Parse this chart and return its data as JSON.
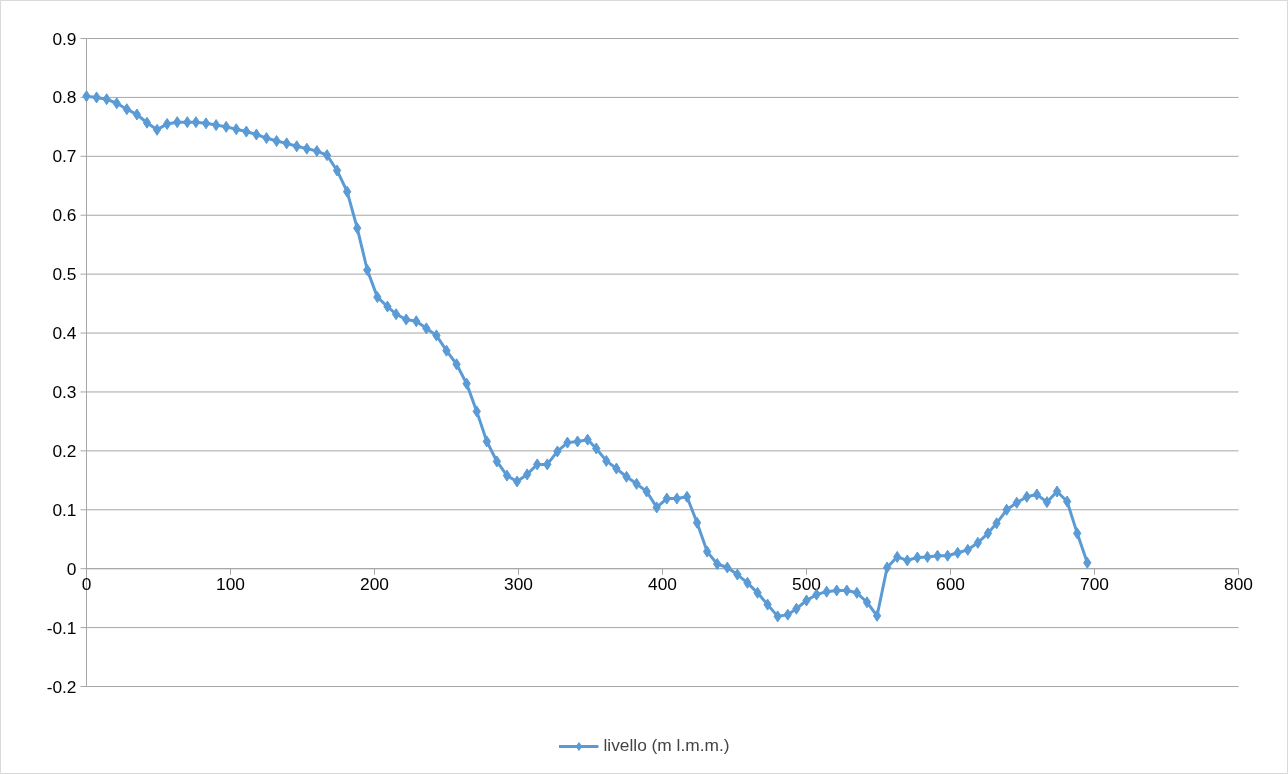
{
  "chart_data": {
    "type": "line",
    "x": [
      0,
      7,
      14,
      21,
      28,
      35,
      42,
      49,
      56,
      63,
      70,
      76,
      83,
      90,
      97,
      104,
      111,
      118,
      125,
      132,
      139,
      146,
      153,
      160,
      167,
      174,
      181,
      188,
      195,
      202,
      209,
      215,
      222,
      229,
      236,
      243,
      250,
      257,
      264,
      271,
      278,
      285,
      292,
      299,
      306,
      313,
      320,
      327,
      334,
      341,
      348,
      354,
      361,
      368,
      375,
      382,
      389,
      396,
      403,
      410,
      417,
      424,
      431,
      438,
      445,
      452,
      459,
      466,
      473,
      480,
      487,
      493,
      500,
      507,
      514,
      521,
      528,
      535,
      542,
      549,
      556,
      563,
      570,
      577,
      584,
      591,
      598,
      605,
      612,
      619,
      626,
      632,
      639,
      646,
      653,
      660,
      667,
      674,
      681,
      688,
      695
    ],
    "series": [
      {
        "name": "livello (m l.m.m.)",
        "color": "#5b9bd5",
        "values": [
          0.802,
          0.8,
          0.797,
          0.79,
          0.78,
          0.771,
          0.757,
          0.745,
          0.755,
          0.758,
          0.758,
          0.758,
          0.756,
          0.753,
          0.75,
          0.746,
          0.742,
          0.737,
          0.731,
          0.726,
          0.722,
          0.717,
          0.713,
          0.709,
          0.702,
          0.676,
          0.64,
          0.578,
          0.507,
          0.461,
          0.445,
          0.432,
          0.423,
          0.42,
          0.408,
          0.396,
          0.37,
          0.347,
          0.314,
          0.267,
          0.216,
          0.182,
          0.158,
          0.148,
          0.16,
          0.177,
          0.177,
          0.199,
          0.214,
          0.216,
          0.219,
          0.204,
          0.183,
          0.17,
          0.156,
          0.144,
          0.131,
          0.104,
          0.119,
          0.119,
          0.122,
          0.078,
          0.029,
          0.008,
          0.002,
          -0.01,
          -0.024,
          -0.041,
          -0.061,
          -0.081,
          -0.078,
          -0.068,
          -0.054,
          -0.044,
          -0.039,
          -0.037,
          -0.037,
          -0.041,
          -0.057,
          -0.08,
          0.002,
          0.02,
          0.014,
          0.019,
          0.02,
          0.022,
          0.022,
          0.027,
          0.032,
          0.044,
          0.06,
          0.077,
          0.1,
          0.112,
          0.122,
          0.126,
          0.113,
          0.131,
          0.114,
          0.06,
          0.01
        ]
      }
    ],
    "xlim": [
      0,
      800
    ],
    "xticks": [
      0,
      100,
      200,
      300,
      400,
      500,
      600,
      700,
      800
    ],
    "ylim": [
      -0.2,
      0.9
    ],
    "yticks": [
      -0.2,
      -0.1,
      0,
      0.1,
      0.2,
      0.3,
      0.4,
      0.5,
      0.6,
      0.7,
      0.8,
      0.9
    ],
    "grid": "y",
    "legend": "bottom",
    "marker": "diamond",
    "line_style": "solid"
  }
}
